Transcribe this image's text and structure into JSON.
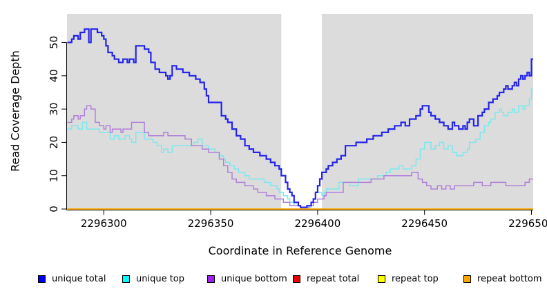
{
  "chart_data": {
    "type": "line",
    "subtype": "step-after",
    "title": "",
    "xlabel": "Coordinate in Reference Genome",
    "ylabel": "Read Coverage Depth",
    "xlim": [
      2296282.8,
      2296500.8
    ],
    "ylim": [
      0,
      58.6
    ],
    "grid": false,
    "panel_color": "#DCDCDC",
    "axis_color": "#000000",
    "gap_band": {
      "from": 2296383,
      "to": 2296402,
      "color": "#FFFFFF"
    },
    "x_ticks": [
      {
        "value": 2296300,
        "label": "2296300"
      },
      {
        "value": 2296350,
        "label": "2296350"
      },
      {
        "value": 2296400,
        "label": "2296400"
      },
      {
        "value": 2296450,
        "label": "2296450"
      },
      {
        "value": 2296500,
        "label": "2296500"
      }
    ],
    "y_ticks": [
      {
        "value": 0,
        "label": "0"
      },
      {
        "value": 10,
        "label": "10"
      },
      {
        "value": 20,
        "label": "20"
      },
      {
        "value": 30,
        "label": "30"
      },
      {
        "value": 40,
        "label": "40"
      },
      {
        "value": 50,
        "label": "50"
      }
    ],
    "series": [
      {
        "name": "repeat total",
        "color": "#DD0000",
        "width": 1.5,
        "points": [
          [
            2296283,
            0
          ]
        ]
      },
      {
        "name": "repeat top",
        "color": "#FFFF00",
        "width": 1.5,
        "points": [
          [
            2296283,
            0
          ]
        ]
      },
      {
        "name": "repeat bottom",
        "color": "#FFA500",
        "width": 1.6,
        "points": [
          [
            2296283,
            0
          ]
        ]
      },
      {
        "name": "unique top",
        "color": "#7CE8EF",
        "width": 1.5,
        "points": [
          [
            2296283,
            24
          ],
          [
            2296285,
            25
          ],
          [
            2296288,
            24
          ],
          [
            2296290,
            26
          ],
          [
            2296292,
            24
          ],
          [
            2296298,
            23
          ],
          [
            2296303,
            21
          ],
          [
            2296305,
            22
          ],
          [
            2296307,
            21
          ],
          [
            2296310,
            22
          ],
          [
            2296312,
            21
          ],
          [
            2296313,
            20
          ],
          [
            2296315,
            23
          ],
          [
            2296319,
            21
          ],
          [
            2296323,
            20
          ],
          [
            2296325,
            19
          ],
          [
            2296327,
            17
          ],
          [
            2296328,
            18
          ],
          [
            2296330,
            17
          ],
          [
            2296332,
            19
          ],
          [
            2296342,
            20
          ],
          [
            2296344,
            21
          ],
          [
            2296346,
            19
          ],
          [
            2296349,
            18
          ],
          [
            2296352,
            17
          ],
          [
            2296354,
            16
          ],
          [
            2296356,
            15
          ],
          [
            2296357,
            14
          ],
          [
            2296359,
            13
          ],
          [
            2296361,
            12
          ],
          [
            2296363,
            11
          ],
          [
            2296366,
            10
          ],
          [
            2296368,
            9
          ],
          [
            2296375,
            8
          ],
          [
            2296378,
            7
          ],
          [
            2296381,
            6
          ],
          [
            2296382,
            5
          ],
          [
            2296384,
            4
          ],
          [
            2296386,
            3
          ],
          [
            2296387,
            2
          ],
          [
            2296389,
            1
          ],
          [
            2296392,
            0.5
          ],
          [
            2296397,
            2
          ],
          [
            2296398,
            3
          ],
          [
            2296399,
            5
          ],
          [
            2296402,
            4
          ],
          [
            2296403,
            5
          ],
          [
            2296404,
            6
          ],
          [
            2296410,
            8
          ],
          [
            2296415,
            7
          ],
          [
            2296419,
            9
          ],
          [
            2296428,
            10
          ],
          [
            2296432,
            11
          ],
          [
            2296434,
            12
          ],
          [
            2296438,
            13
          ],
          [
            2296440,
            12
          ],
          [
            2296444,
            13
          ],
          [
            2296446,
            15
          ],
          [
            2296448,
            18
          ],
          [
            2296450,
            20
          ],
          [
            2296453,
            18
          ],
          [
            2296455,
            19
          ],
          [
            2296457,
            20
          ],
          [
            2296459,
            18
          ],
          [
            2296461,
            19
          ],
          [
            2296463,
            17
          ],
          [
            2296465,
            16
          ],
          [
            2296468,
            17
          ],
          [
            2296470,
            18
          ],
          [
            2296471,
            20
          ],
          [
            2296474,
            21
          ],
          [
            2296476,
            23
          ],
          [
            2296478,
            25
          ],
          [
            2296480,
            26
          ],
          [
            2296481,
            27
          ],
          [
            2296483,
            29
          ],
          [
            2296485,
            30
          ],
          [
            2296486,
            29
          ],
          [
            2296487,
            28
          ],
          [
            2296489,
            29
          ],
          [
            2296491,
            30
          ],
          [
            2296492,
            29
          ],
          [
            2296494,
            31
          ],
          [
            2296496,
            30
          ],
          [
            2296497,
            31
          ],
          [
            2296499,
            33
          ],
          [
            2296500,
            36
          ]
        ]
      },
      {
        "name": "unique bottom",
        "color": "#B07FD8",
        "width": 1.5,
        "points": [
          [
            2296283,
            26
          ],
          [
            2296285,
            27
          ],
          [
            2296286,
            28
          ],
          [
            2296288,
            27
          ],
          [
            2296289,
            28
          ],
          [
            2296291,
            30
          ],
          [
            2296292,
            31
          ],
          [
            2296294,
            30
          ],
          [
            2296296,
            26
          ],
          [
            2296298,
            25
          ],
          [
            2296300,
            24
          ],
          [
            2296301,
            25
          ],
          [
            2296303,
            23
          ],
          [
            2296304,
            24
          ],
          [
            2296308,
            23
          ],
          [
            2296309,
            24
          ],
          [
            2296313,
            26
          ],
          [
            2296319,
            23
          ],
          [
            2296321,
            22
          ],
          [
            2296328,
            23
          ],
          [
            2296330,
            22
          ],
          [
            2296338,
            21
          ],
          [
            2296341,
            19
          ],
          [
            2296346,
            18
          ],
          [
            2296349,
            17
          ],
          [
            2296354,
            15
          ],
          [
            2296356,
            13
          ],
          [
            2296358,
            11
          ],
          [
            2296360,
            9
          ],
          [
            2296362,
            8
          ],
          [
            2296366,
            7
          ],
          [
            2296370,
            6
          ],
          [
            2296372,
            5
          ],
          [
            2296376,
            4
          ],
          [
            2296380,
            3
          ],
          [
            2296384,
            2
          ],
          [
            2296387,
            1
          ],
          [
            2296392,
            0.5
          ],
          [
            2296396,
            1
          ],
          [
            2296398,
            2
          ],
          [
            2296400,
            3
          ],
          [
            2296403,
            4
          ],
          [
            2296404,
            5
          ],
          [
            2296412,
            8
          ],
          [
            2296425,
            9
          ],
          [
            2296431,
            10
          ],
          [
            2296444,
            11
          ],
          [
            2296447,
            9
          ],
          [
            2296449,
            8
          ],
          [
            2296451,
            7
          ],
          [
            2296453,
            6
          ],
          [
            2296456,
            7
          ],
          [
            2296458,
            6
          ],
          [
            2296460,
            7
          ],
          [
            2296462,
            6
          ],
          [
            2296464,
            7
          ],
          [
            2296471,
            7
          ],
          [
            2296473,
            8
          ],
          [
            2296477,
            7
          ],
          [
            2296481,
            8
          ],
          [
            2296488,
            7
          ],
          [
            2296493,
            7
          ],
          [
            2296497,
            8
          ],
          [
            2296499,
            9
          ]
        ]
      },
      {
        "name": "unique total",
        "color": "#2424EB",
        "width": 2.2,
        "points": [
          [
            2296283,
            50
          ],
          [
            2296285,
            51
          ],
          [
            2296286,
            52
          ],
          [
            2296288,
            51
          ],
          [
            2296289,
            53
          ],
          [
            2296291,
            54
          ],
          [
            2296293,
            50
          ],
          [
            2296294,
            54
          ],
          [
            2296297,
            53
          ],
          [
            2296299,
            52
          ],
          [
            2296300,
            51
          ],
          [
            2296301,
            49
          ],
          [
            2296302,
            47
          ],
          [
            2296304,
            46
          ],
          [
            2296305,
            45
          ],
          [
            2296307,
            44
          ],
          [
            2296309,
            45
          ],
          [
            2296311,
            44
          ],
          [
            2296312,
            45
          ],
          [
            2296314,
            44
          ],
          [
            2296315,
            49
          ],
          [
            2296319,
            48
          ],
          [
            2296321,
            47
          ],
          [
            2296322,
            44
          ],
          [
            2296324,
            42
          ],
          [
            2296326,
            41
          ],
          [
            2296329,
            40
          ],
          [
            2296330,
            39
          ],
          [
            2296331,
            40
          ],
          [
            2296332,
            43
          ],
          [
            2296334,
            42
          ],
          [
            2296337,
            41
          ],
          [
            2296340,
            40
          ],
          [
            2296343,
            39
          ],
          [
            2296345,
            38
          ],
          [
            2296347,
            36
          ],
          [
            2296348,
            34
          ],
          [
            2296349,
            32
          ],
          [
            2296355,
            28
          ],
          [
            2296357,
            27
          ],
          [
            2296358,
            26
          ],
          [
            2296360,
            24
          ],
          [
            2296362,
            22
          ],
          [
            2296364,
            21
          ],
          [
            2296366,
            19
          ],
          [
            2296368,
            18
          ],
          [
            2296370,
            17
          ],
          [
            2296373,
            16
          ],
          [
            2296376,
            15
          ],
          [
            2296378,
            14
          ],
          [
            2296380,
            13
          ],
          [
            2296382,
            12
          ],
          [
            2296383,
            10
          ],
          [
            2296385,
            8
          ],
          [
            2296386,
            6
          ],
          [
            2296387,
            5
          ],
          [
            2296388,
            4
          ],
          [
            2296389,
            2
          ],
          [
            2296391,
            1
          ],
          [
            2296392,
            0.5
          ],
          [
            2296395,
            1
          ],
          [
            2296397,
            2
          ],
          [
            2296398,
            3
          ],
          [
            2296399,
            5
          ],
          [
            2296400,
            7
          ],
          [
            2296401,
            9
          ],
          [
            2296402,
            11
          ],
          [
            2296404,
            12
          ],
          [
            2296405,
            13
          ],
          [
            2296407,
            14
          ],
          [
            2296409,
            15
          ],
          [
            2296411,
            16
          ],
          [
            2296413,
            19
          ],
          [
            2296418,
            20
          ],
          [
            2296423,
            21
          ],
          [
            2296426,
            22
          ],
          [
            2296430,
            23
          ],
          [
            2296433,
            24
          ],
          [
            2296436,
            25
          ],
          [
            2296439,
            26
          ],
          [
            2296441,
            25
          ],
          [
            2296443,
            27
          ],
          [
            2296446,
            28
          ],
          [
            2296448,
            30
          ],
          [
            2296449,
            31
          ],
          [
            2296452,
            29
          ],
          [
            2296453,
            28
          ],
          [
            2296455,
            27
          ],
          [
            2296457,
            26
          ],
          [
            2296459,
            25
          ],
          [
            2296461,
            24
          ],
          [
            2296463,
            26
          ],
          [
            2296464,
            25
          ],
          [
            2296466,
            24
          ],
          [
            2296468,
            25
          ],
          [
            2296469,
            24
          ],
          [
            2296470,
            26
          ],
          [
            2296471,
            27
          ],
          [
            2296473,
            25
          ],
          [
            2296475,
            28
          ],
          [
            2296477,
            29
          ],
          [
            2296478,
            30
          ],
          [
            2296480,
            32
          ],
          [
            2296482,
            33
          ],
          [
            2296484,
            34
          ],
          [
            2296485,
            35
          ],
          [
            2296487,
            36
          ],
          [
            2296488,
            37
          ],
          [
            2296489,
            36
          ],
          [
            2296491,
            37
          ],
          [
            2296492,
            38
          ],
          [
            2296493,
            37
          ],
          [
            2296494,
            39
          ],
          [
            2296495,
            40
          ],
          [
            2296496,
            39
          ],
          [
            2296497,
            40
          ],
          [
            2296498,
            41
          ],
          [
            2296499,
            40
          ],
          [
            2296500,
            45
          ]
        ]
      }
    ],
    "legend": [
      {
        "label": "unique total",
        "fill": "#0000EE",
        "border": "#000000"
      },
      {
        "label": "unique top",
        "fill": "#00FFFF",
        "border": "#000000"
      },
      {
        "label": "unique bottom",
        "fill": "#A020F0",
        "border": "#000000"
      },
      {
        "label": "repeat total",
        "fill": "#EE0000",
        "border": "#000000"
      },
      {
        "label": "repeat top",
        "fill": "#FFFF00",
        "border": "#000000"
      },
      {
        "label": "repeat bottom",
        "fill": "#FFA500",
        "border": "#000000"
      }
    ],
    "legend_position": "bottom"
  }
}
